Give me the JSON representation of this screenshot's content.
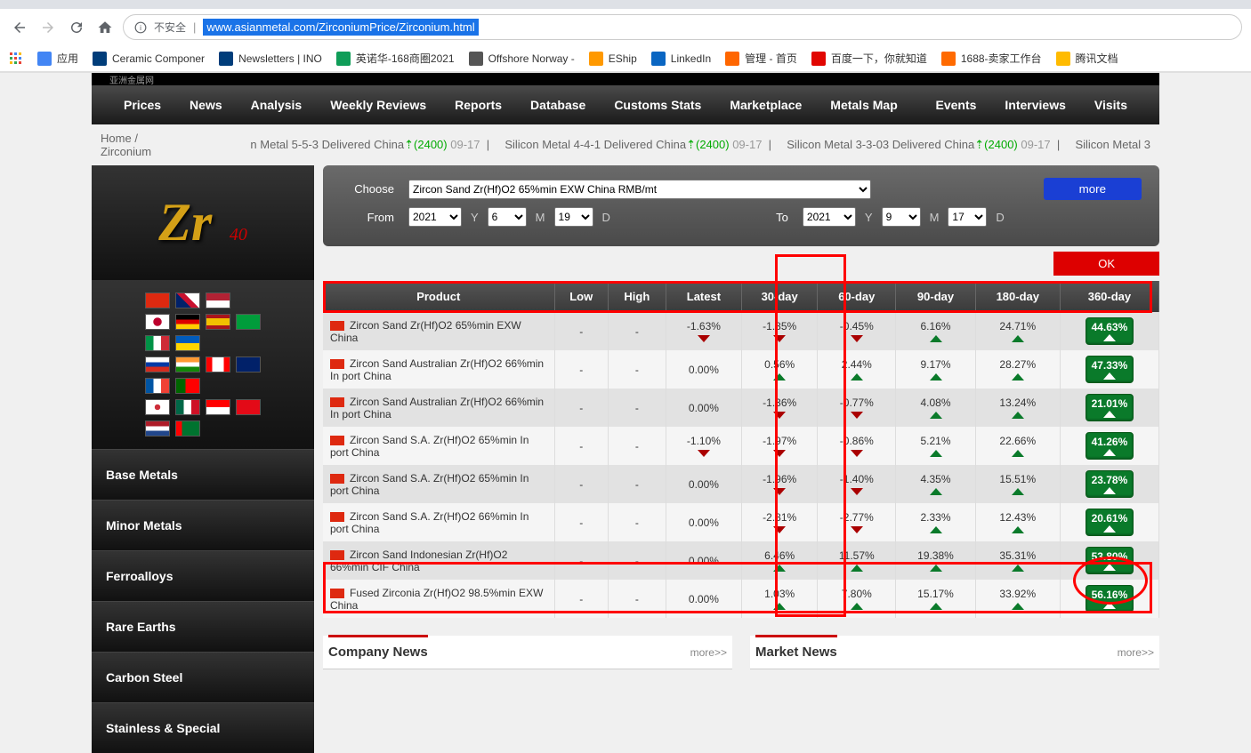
{
  "browser": {
    "security_label": "不安全",
    "url": "www.asianmetal.com/ZirconiumPrice/Zirconium.html",
    "bookmarks": [
      {
        "label": "应用",
        "color": "#4285f4"
      },
      {
        "label": "Ceramic Componer",
        "color": "#003d7a"
      },
      {
        "label": "Newsletters | INO",
        "color": "#003d7a"
      },
      {
        "label": "英诺华-168商圈2021",
        "color": "#0f9d58"
      },
      {
        "label": "Offshore Norway -",
        "color": "#555"
      },
      {
        "label": "EShip",
        "color": "#f90"
      },
      {
        "label": "LinkedIn",
        "color": "#0a66c2"
      },
      {
        "label": "管理 - 首页",
        "color": "#f60"
      },
      {
        "label": "百度一下，你就知道",
        "color": "#e10601"
      },
      {
        "label": "1688-卖家工作台",
        "color": "#ff6a00"
      },
      {
        "label": "腾讯文档",
        "color": "#fb0"
      }
    ]
  },
  "top_nav": {
    "left": [
      "Prices",
      "News",
      "Analysis",
      "Weekly Reviews",
      "Reports",
      "Database",
      "Customs Stats",
      "Marketplace",
      "Metals Map"
    ],
    "right": [
      "Events",
      "Interviews",
      "Visits"
    ]
  },
  "breadcrumb": {
    "home": "Home",
    "sep": "/",
    "current": "Zirconium"
  },
  "ticker": [
    {
      "text": "n Metal 5-5-3 Delivered China",
      "val": "(2400)",
      "date": "09-17"
    },
    {
      "text": "Silicon Metal 4-4-1 Delivered China",
      "val": "(2400)",
      "date": "09-17"
    },
    {
      "text": "Silicon Metal 3-3-03 Delivered China",
      "val": "(2400)",
      "date": "09-17"
    },
    {
      "text": "Silicon Metal 3",
      "val": "",
      "date": ""
    }
  ],
  "element": {
    "symbol": "Zr",
    "number": "40"
  },
  "sidebar_menu": [
    "Base Metals",
    "Minor Metals",
    "Ferroalloys",
    "Rare Earths",
    "Carbon Steel",
    "Stainless & Special"
  ],
  "filter": {
    "choose_label": "Choose",
    "product": "Zircon Sand Zr(Hf)O2 65%min EXW China RMB/mt",
    "from_label": "From",
    "to_label": "To",
    "from_y": "2021",
    "from_m": "6",
    "from_d": "19",
    "to_y": "2021",
    "to_m": "9",
    "to_d": "17",
    "more": "more",
    "ok": "OK"
  },
  "table": {
    "headers": [
      "Product",
      "Low",
      "High",
      "Latest",
      "30-day",
      "60-day",
      "90-day",
      "180-day",
      "360-day"
    ],
    "rows": [
      {
        "product": "Zircon Sand Zr(Hf)O2 65%min EXW China",
        "low": "-",
        "high": "-",
        "latest": "-1.63%",
        "latest_dir": "down",
        "d30": "-1.85%",
        "d30_dir": "down",
        "d60": "-0.45%",
        "d60_dir": "down",
        "d90": "6.16%",
        "d90_dir": "up",
        "d180": "24.71%",
        "d180_dir": "up",
        "d360": "44.63%"
      },
      {
        "product": "Zircon Sand Australian Zr(Hf)O2 66%min In port China",
        "low": "-",
        "high": "-",
        "latest": "0.00%",
        "latest_dir": "",
        "d30": "0.56%",
        "d30_dir": "up",
        "d60": "2.44%",
        "d60_dir": "up",
        "d90": "9.17%",
        "d90_dir": "up",
        "d180": "28.27%",
        "d180_dir": "up",
        "d360": "47.33%"
      },
      {
        "product": "Zircon Sand Australian Zr(Hf)O2 66%min In port China",
        "low": "-",
        "high": "-",
        "latest": "0.00%",
        "latest_dir": "",
        "d30": "-1.36%",
        "d30_dir": "down",
        "d60": "-0.77%",
        "d60_dir": "down",
        "d90": "4.08%",
        "d90_dir": "up",
        "d180": "13.24%",
        "d180_dir": "up",
        "d360": "21.01%"
      },
      {
        "product": "Zircon Sand S.A. Zr(Hf)O2 65%min In port China",
        "low": "-",
        "high": "-",
        "latest": "-1.10%",
        "latest_dir": "down",
        "d30": "-1.97%",
        "d30_dir": "down",
        "d60": "-0.86%",
        "d60_dir": "down",
        "d90": "5.21%",
        "d90_dir": "up",
        "d180": "22.66%",
        "d180_dir": "up",
        "d360": "41.26%"
      },
      {
        "product": "Zircon Sand S.A. Zr(Hf)O2 65%min In port China",
        "low": "-",
        "high": "-",
        "latest": "0.00%",
        "latest_dir": "",
        "d30": "-1.96%",
        "d30_dir": "down",
        "d60": "-1.40%",
        "d60_dir": "down",
        "d90": "4.35%",
        "d90_dir": "up",
        "d180": "15.51%",
        "d180_dir": "up",
        "d360": "23.78%"
      },
      {
        "product": "Zircon Sand S.A. Zr(Hf)O2 66%min In port China",
        "low": "-",
        "high": "-",
        "latest": "0.00%",
        "latest_dir": "",
        "d30": "-2.81%",
        "d30_dir": "down",
        "d60": "-2.77%",
        "d60_dir": "down",
        "d90": "2.33%",
        "d90_dir": "up",
        "d180": "12.43%",
        "d180_dir": "up",
        "d360": "20.61%"
      },
      {
        "product": "Zircon Sand Indonesian Zr(Hf)O2 66%min CIF China",
        "low": "-",
        "high": "-",
        "latest": "0.00%",
        "latest_dir": "",
        "d30": "6.46%",
        "d30_dir": "up",
        "d60": "11.57%",
        "d60_dir": "up",
        "d90": "19.38%",
        "d90_dir": "up",
        "d180": "35.31%",
        "d180_dir": "up",
        "d360": "53.80%"
      },
      {
        "product": "Fused Zirconia Zr(Hf)O2 98.5%min EXW China",
        "low": "-",
        "high": "-",
        "latest": "0.00%",
        "latest_dir": "",
        "d30": "1.03%",
        "d30_dir": "up",
        "d60": "7.80%",
        "d60_dir": "up",
        "d90": "15.17%",
        "d90_dir": "up",
        "d180": "33.92%",
        "d180_dir": "up",
        "d360": "56.16%"
      }
    ]
  },
  "news": {
    "company": "Company News",
    "market": "Market News",
    "more": "more>>"
  }
}
